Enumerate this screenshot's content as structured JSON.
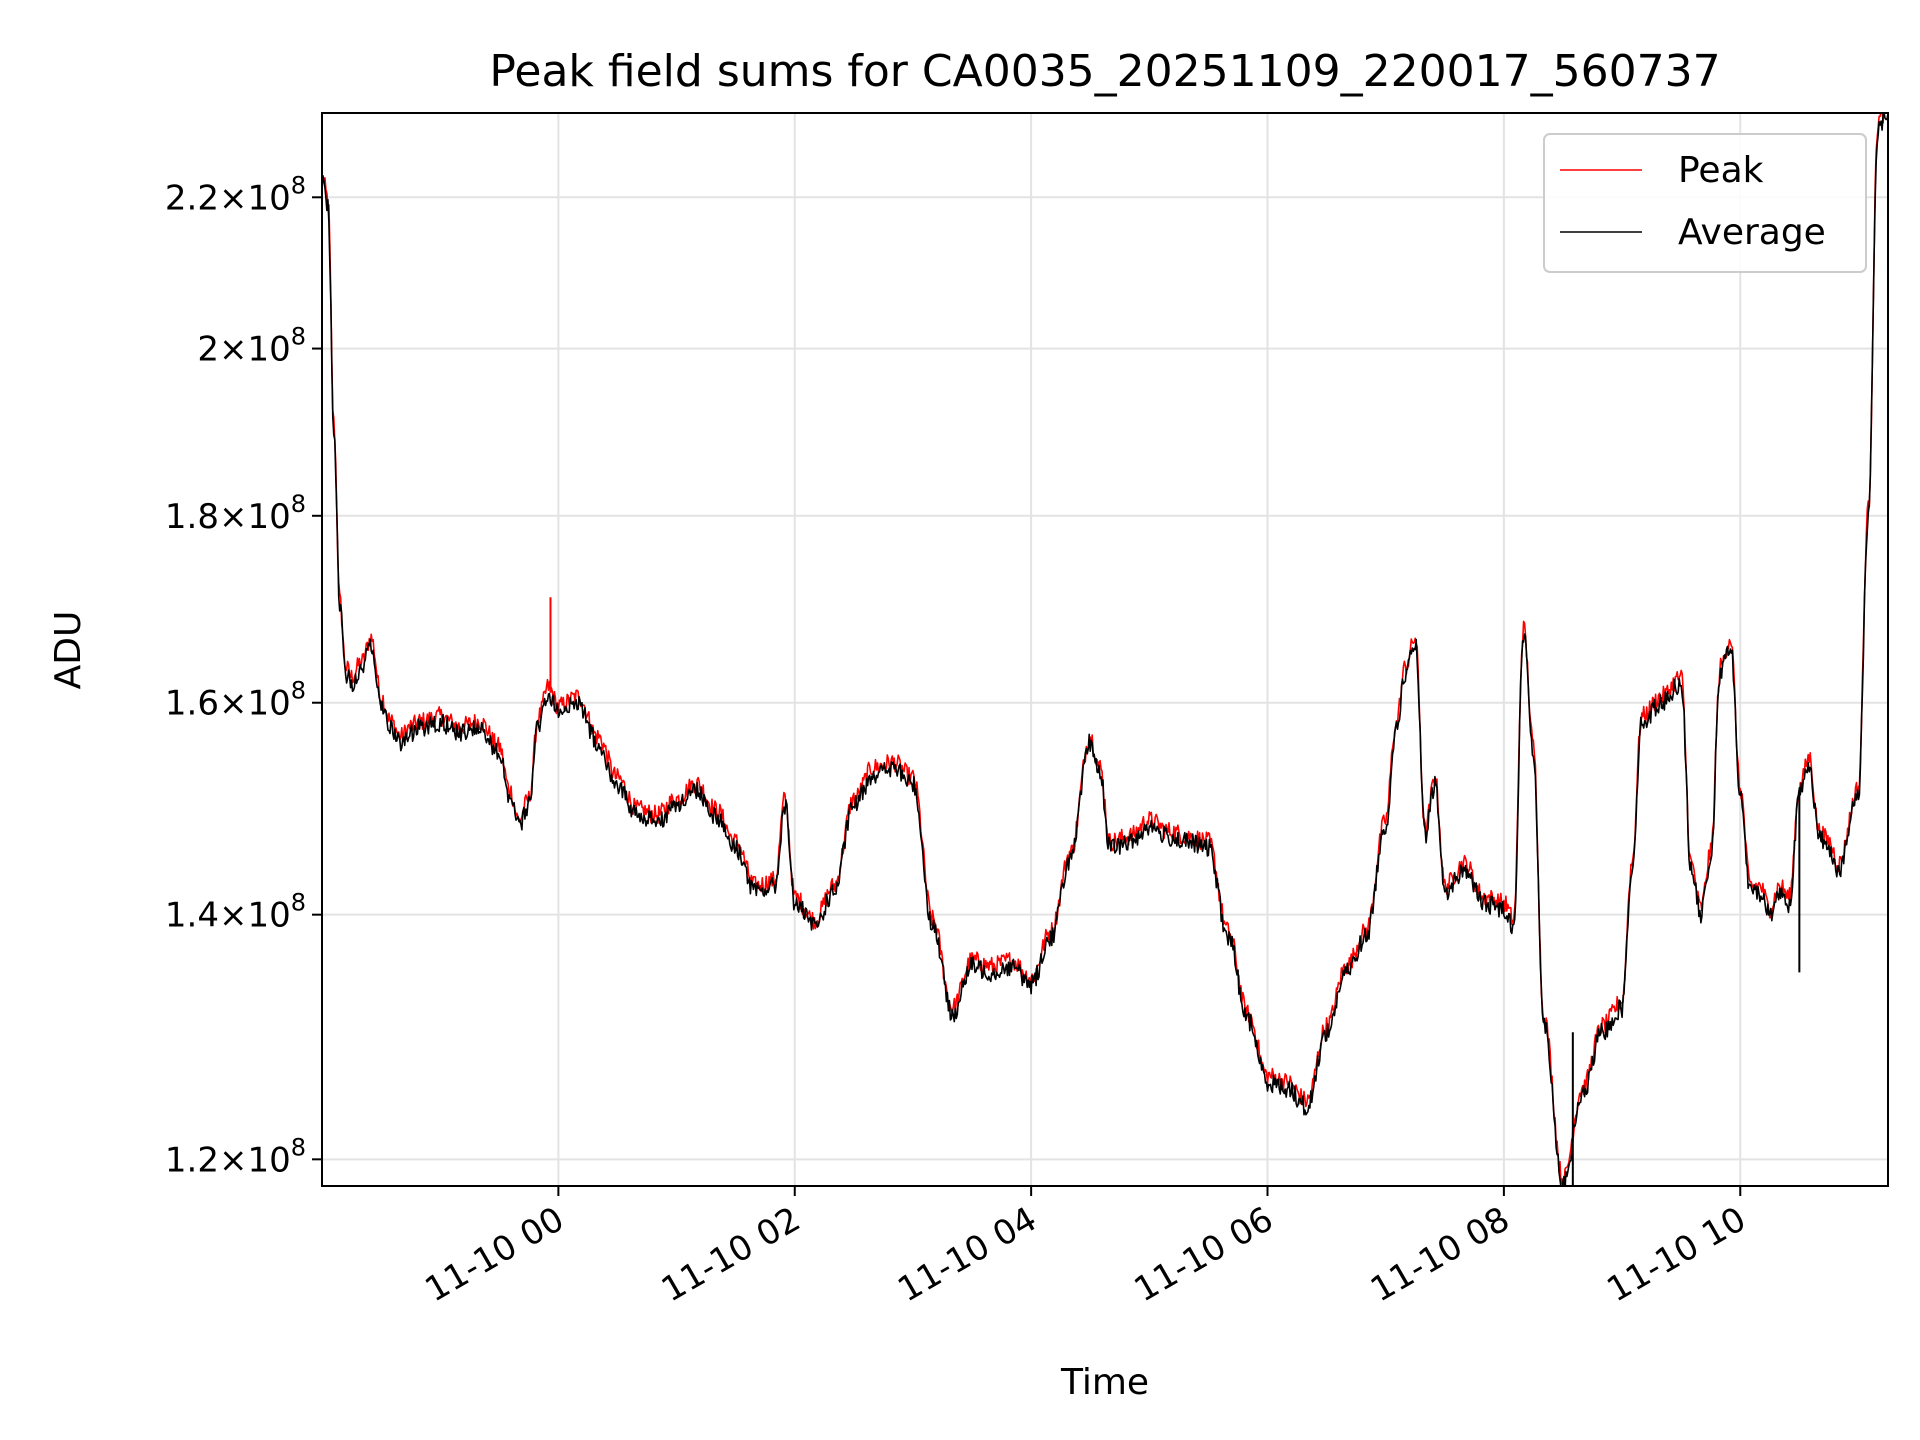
{
  "chart_data": {
    "type": "line",
    "title": "Peak field sums for CA0035_20251109_220017_560737",
    "xlabel": "Time",
    "ylabel": "ADU",
    "xlim": [
      "2025-11-09T22:00",
      "2025-11-10T11:15"
    ],
    "ylim": [
      118000000,
      232000000
    ],
    "yscale": "log",
    "grid": true,
    "legend_position": "top-right",
    "x_ticks": [
      {
        "t": "2025-11-10T00:00",
        "label": "11-10 00"
      },
      {
        "t": "2025-11-10T02:00",
        "label": "11-10 02"
      },
      {
        "t": "2025-11-10T04:00",
        "label": "11-10 04"
      },
      {
        "t": "2025-11-10T06:00",
        "label": "11-10 06"
      },
      {
        "t": "2025-11-10T08:00",
        "label": "11-10 08"
      },
      {
        "t": "2025-11-10T10:00",
        "label": "11-10 10"
      }
    ],
    "y_ticks": [
      {
        "v": 120000000,
        "label": "1.2",
        "exp": "8"
      },
      {
        "v": 140000000,
        "label": "1.4",
        "exp": "8"
      },
      {
        "v": 160000000,
        "label": "1.6",
        "exp": "8"
      },
      {
        "v": 180000000,
        "label": "1.8",
        "exp": "8"
      },
      {
        "v": 200000000,
        "label": "2",
        "exp": "8"
      },
      {
        "v": 220000000,
        "label": "2.2",
        "exp": "8"
      }
    ],
    "series": [
      {
        "name": "Peak",
        "color": "#ff0000",
        "offset": 1.004
      },
      {
        "name": "Average",
        "color": "#000000",
        "offset": 1.0
      }
    ],
    "x": [
      "2025-11-09T22:00",
      "2025-11-09T22:03",
      "2025-11-09T22:06",
      "2025-11-09T22:09",
      "2025-11-09T22:12",
      "2025-11-09T22:15",
      "2025-11-09T22:20",
      "2025-11-09T22:25",
      "2025-11-09T22:30",
      "2025-11-09T22:35",
      "2025-11-09T22:40",
      "2025-11-09T22:45",
      "2025-11-09T22:50",
      "2025-11-09T23:00",
      "2025-11-09T23:10",
      "2025-11-09T23:20",
      "2025-11-09T23:30",
      "2025-11-09T23:35",
      "2025-11-09T23:40",
      "2025-11-09T23:45",
      "2025-11-09T23:50",
      "2025-11-09T23:55",
      "2025-11-10T00:00",
      "2025-11-10T00:10",
      "2025-11-10T00:20",
      "2025-11-10T00:30",
      "2025-11-10T00:40",
      "2025-11-10T00:50",
      "2025-11-10T01:00",
      "2025-11-10T01:10",
      "2025-11-10T01:20",
      "2025-11-10T01:30",
      "2025-11-10T01:40",
      "2025-11-10T01:50",
      "2025-11-10T01:55",
      "2025-11-10T02:00",
      "2025-11-10T02:10",
      "2025-11-10T02:20",
      "2025-11-10T02:30",
      "2025-11-10T02:40",
      "2025-11-10T02:50",
      "2025-11-10T03:00",
      "2025-11-10T03:10",
      "2025-11-10T03:20",
      "2025-11-10T03:30",
      "2025-11-10T03:40",
      "2025-11-10T03:50",
      "2025-11-10T04:00",
      "2025-11-10T04:10",
      "2025-11-10T04:20",
      "2025-11-10T04:30",
      "2025-11-10T04:35",
      "2025-11-10T04:40",
      "2025-11-10T04:50",
      "2025-11-10T05:00",
      "2025-11-10T05:10",
      "2025-11-10T05:20",
      "2025-11-10T05:30",
      "2025-11-10T05:40",
      "2025-11-10T05:50",
      "2025-11-10T06:00",
      "2025-11-10T06:10",
      "2025-11-10T06:20",
      "2025-11-10T06:30",
      "2025-11-10T06:40",
      "2025-11-10T06:50",
      "2025-11-10T07:00",
      "2025-11-10T07:05",
      "2025-11-10T07:10",
      "2025-11-10T07:15",
      "2025-11-10T07:20",
      "2025-11-10T07:25",
      "2025-11-10T07:30",
      "2025-11-10T07:40",
      "2025-11-10T07:50",
      "2025-11-10T08:00",
      "2025-11-10T08:05",
      "2025-11-10T08:10",
      "2025-11-10T08:15",
      "2025-11-10T08:20",
      "2025-11-10T08:30",
      "2025-11-10T08:40",
      "2025-11-10T08:50",
      "2025-11-10T09:00",
      "2025-11-10T09:05",
      "2025-11-10T09:10",
      "2025-11-10T09:20",
      "2025-11-10T09:30",
      "2025-11-10T09:35",
      "2025-11-10T09:40",
      "2025-11-10T09:45",
      "2025-11-10T09:50",
      "2025-11-10T09:55",
      "2025-11-10T10:00",
      "2025-11-10T10:05",
      "2025-11-10T10:10",
      "2025-11-10T10:15",
      "2025-11-10T10:20",
      "2025-11-10T10:25",
      "2025-11-10T10:30",
      "2025-11-10T10:35",
      "2025-11-10T10:40",
      "2025-11-10T10:45",
      "2025-11-10T10:50",
      "2025-11-10T11:00",
      "2025-11-10T11:05",
      "2025-11-10T11:10",
      "2025-11-10T11:15"
    ],
    "y": [
      222000000,
      219000000,
      190000000,
      170000000,
      163000000,
      162000000,
      163500000,
      166000000,
      160000000,
      157500000,
      156000000,
      157000000,
      157500000,
      158000000,
      157000000,
      157500000,
      155000000,
      151000000,
      148000000,
      150000000,
      158000000,
      161000000,
      159000000,
      160000000,
      156000000,
      152000000,
      149000000,
      148500000,
      150000000,
      151500000,
      149000000,
      146000000,
      142000000,
      142500000,
      150000000,
      141000000,
      139000000,
      142000000,
      150000000,
      153000000,
      153500000,
      152000000,
      139000000,
      131500000,
      135500000,
      135000000,
      135500000,
      134000000,
      138000000,
      145000000,
      156000000,
      153000000,
      146000000,
      146500000,
      148000000,
      147000000,
      146500000,
      146000000,
      138000000,
      131000000,
      126000000,
      125500000,
      124000000,
      130000000,
      135000000,
      138000000,
      148000000,
      157000000,
      163000000,
      166000000,
      147000000,
      152000000,
      142000000,
      144000000,
      141000000,
      140500000,
      139000000,
      167000000,
      155000000,
      131000000,
      118000000,
      125000000,
      130000000,
      132000000,
      144000000,
      158000000,
      160000000,
      162000000,
      144000000,
      140000000,
      145000000,
      163000000,
      166000000,
      151000000,
      142000000,
      142000000,
      140000000,
      142000000,
      141000000,
      151000000,
      154000000,
      147000000,
      146000000,
      144000000,
      151000000,
      180000000,
      230000000,
      232000000
    ],
    "spikes": [
      {
        "t": "2025-11-09T23:56",
        "v": 171000000,
        "series": "Peak"
      },
      {
        "t": "2025-11-10T08:35",
        "v": 130000000,
        "series": "Average"
      },
      {
        "t": "2025-11-10T10:30",
        "v": 135000000,
        "series": "Average"
      }
    ]
  }
}
